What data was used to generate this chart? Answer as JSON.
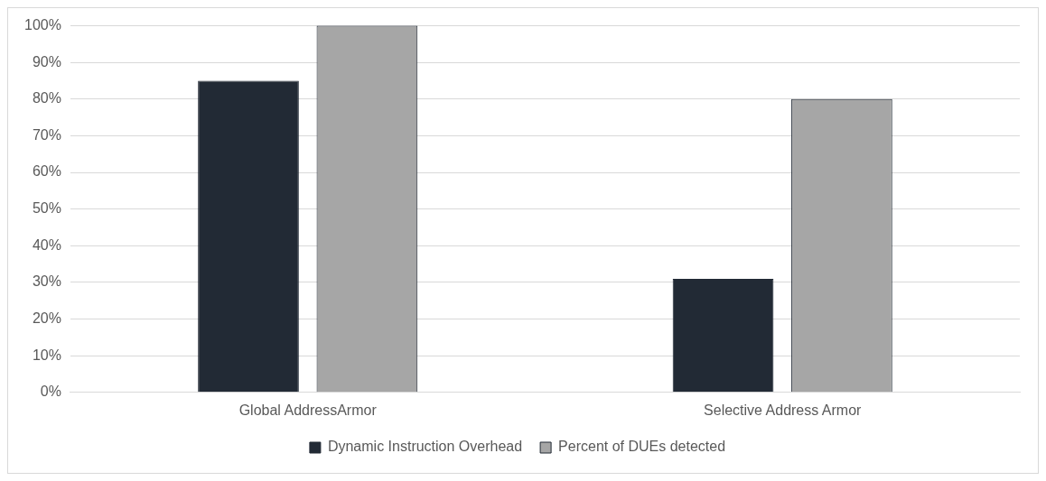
{
  "chart_data": {
    "type": "bar",
    "categories": [
      "Global AddressArmor",
      "Selective Address Armor"
    ],
    "series": [
      {
        "name": "Dynamic Instruction Overhead",
        "color": "#222a35",
        "values": [
          85,
          31
        ]
      },
      {
        "name": "Percent of DUEs detected",
        "color": "#a6a6a6",
        "values": [
          100,
          80
        ]
      }
    ],
    "ylim": [
      0,
      100
    ],
    "yticks": [
      {
        "value": 0,
        "label": "0%"
      },
      {
        "value": 10,
        "label": "10%"
      },
      {
        "value": 20,
        "label": "20%"
      },
      {
        "value": 30,
        "label": "30%"
      },
      {
        "value": 40,
        "label": "40%"
      },
      {
        "value": 50,
        "label": "50%"
      },
      {
        "value": 60,
        "label": "60%"
      },
      {
        "value": 70,
        "label": "70%"
      },
      {
        "value": 80,
        "label": "80%"
      },
      {
        "value": 90,
        "label": "90%"
      },
      {
        "value": 100,
        "label": "100%"
      }
    ],
    "grid": "y",
    "legend": "bottom"
  }
}
